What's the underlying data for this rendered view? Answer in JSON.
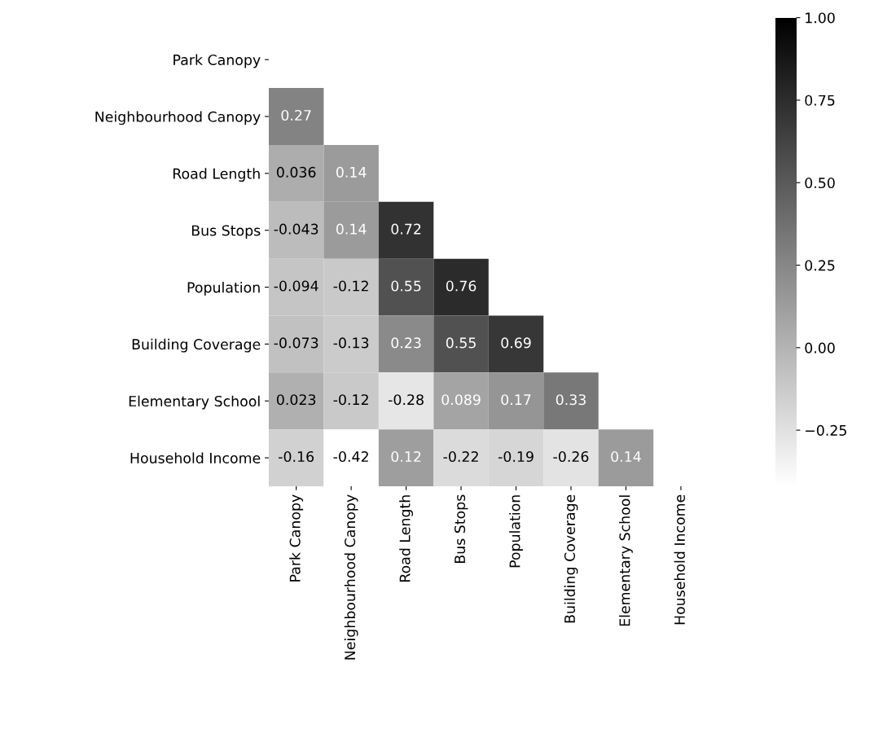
{
  "chart_data": {
    "type": "heatmap",
    "categories": [
      "Park Canopy",
      "Neighbourhood Canopy",
      "Road Length",
      "Bus Stops",
      "Population",
      "Building Coverage",
      "Elementary School",
      "Household Income"
    ],
    "y_categories": [
      "Park Canopy",
      "Neighbourhood Canopy",
      "Road Length",
      "Bus Stops",
      "Population",
      "Building Coverage",
      "Elementary School",
      "Household Income"
    ],
    "cells": [
      [
        null,
        null,
        null,
        null,
        null,
        null,
        null,
        null
      ],
      [
        0.27,
        null,
        null,
        null,
        null,
        null,
        null,
        null
      ],
      [
        0.036,
        0.14,
        null,
        null,
        null,
        null,
        null,
        null
      ],
      [
        -0.043,
        0.14,
        0.72,
        null,
        null,
        null,
        null,
        null
      ],
      [
        -0.094,
        -0.12,
        0.55,
        0.76,
        null,
        null,
        null,
        null
      ],
      [
        -0.073,
        -0.13,
        0.23,
        0.55,
        0.69,
        null,
        null,
        null
      ],
      [
        0.023,
        -0.12,
        -0.28,
        0.089,
        0.17,
        0.33,
        null,
        null
      ],
      [
        -0.16,
        -0.42,
        0.12,
        -0.22,
        -0.19,
        -0.26,
        0.14,
        null
      ]
    ],
    "data_labels": true,
    "clim": [
      -0.42,
      1.0
    ],
    "cticks": [
      {
        "value": -0.25,
        "label": "−0.25"
      },
      {
        "value": 0.0,
        "label": "0.00"
      },
      {
        "value": 0.25,
        "label": "0.25"
      },
      {
        "value": 0.5,
        "label": "0.50"
      },
      {
        "value": 0.75,
        "label": "0.75"
      },
      {
        "value": 1.0,
        "label": "1.00"
      }
    ]
  }
}
